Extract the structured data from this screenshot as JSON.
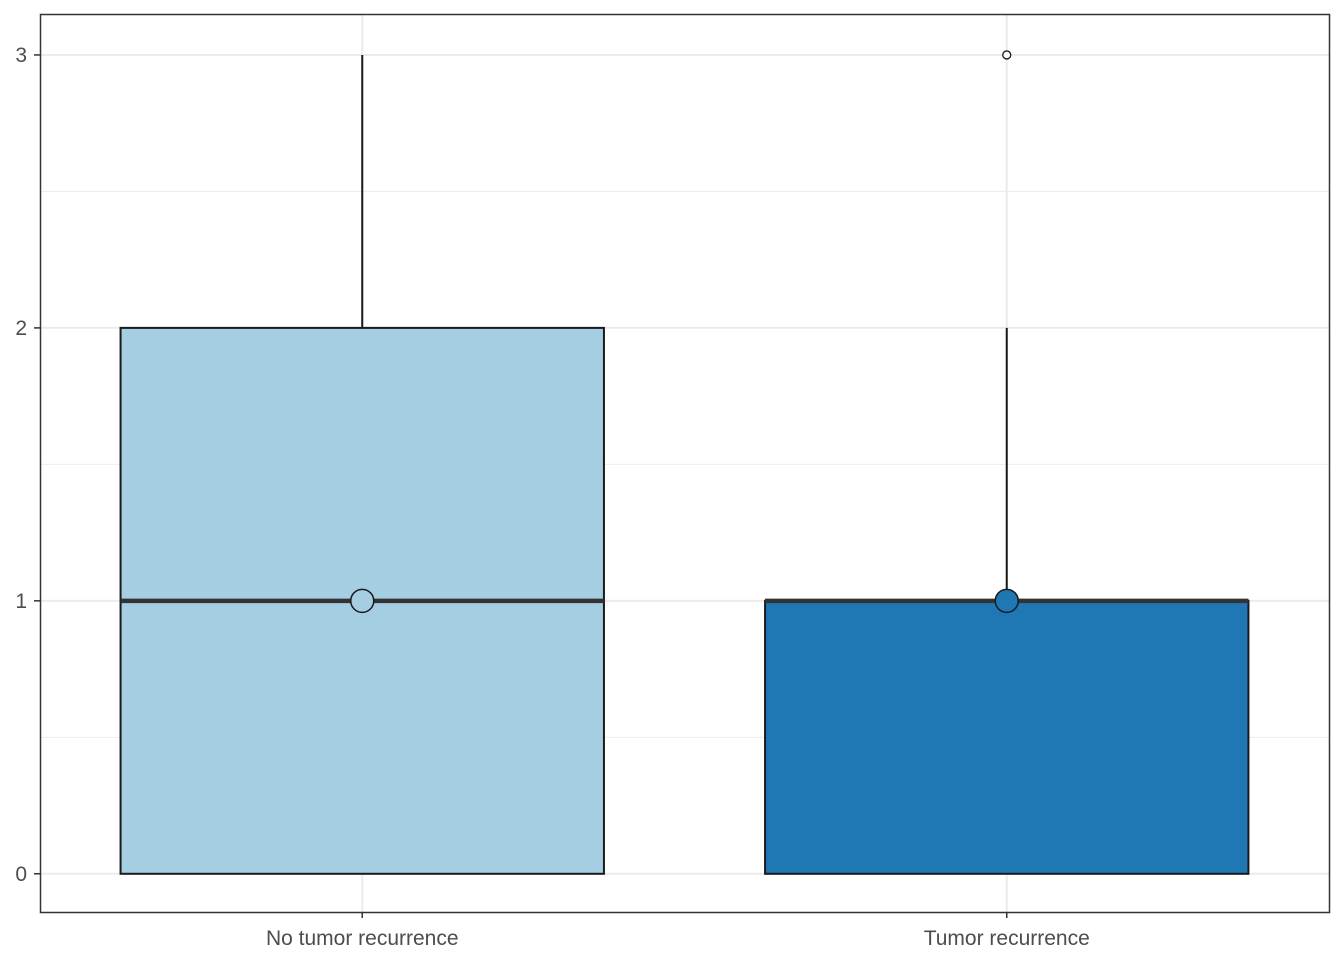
{
  "chart_data": {
    "type": "box",
    "title": "",
    "xlabel": "",
    "ylabel": "",
    "categories": [
      "No tumor recurrence",
      "Tumor recurrence"
    ],
    "ylim": [
      -0.14,
      3.15
    ],
    "y_ticks": [
      0,
      1,
      2,
      3
    ],
    "y_minor_ticks": [
      0.5,
      1.5,
      2.5
    ],
    "grid": true,
    "legend": "none",
    "boxes": [
      {
        "category": "No tumor recurrence",
        "min": 0,
        "q1": 0,
        "median": 1,
        "q3": 2,
        "max": 3,
        "mean": 1,
        "outliers": [],
        "fill": "#A6CEE3"
      },
      {
        "category": "Tumor recurrence",
        "min": 0,
        "q1": 0,
        "median": 1,
        "q3": 1,
        "max": 2,
        "mean": 1,
        "outliers": [
          3
        ],
        "fill": "#1F78B4"
      }
    ],
    "colors": {
      "outline": "#1A1A1A",
      "median_line": "#333333",
      "grid": "#EBEBEB",
      "panel_border": "#333333",
      "tick_label": "#4D4D4D"
    }
  }
}
